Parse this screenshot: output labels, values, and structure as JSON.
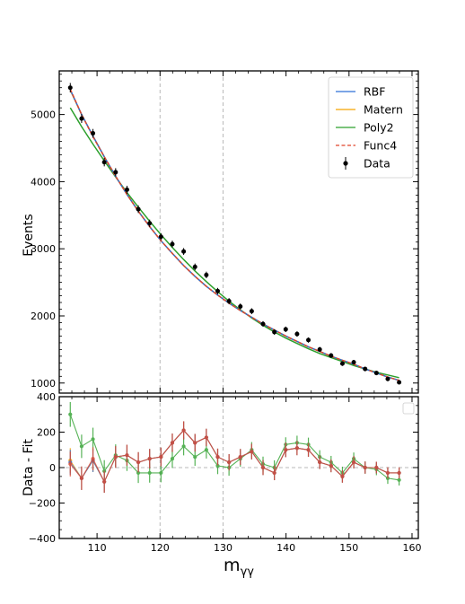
{
  "chart_data": [
    {
      "type": "line",
      "panel": "main",
      "xlabel": "",
      "ylabel": "Events",
      "xlim": [
        104,
        161
      ],
      "ylim": [
        850,
        5650
      ],
      "yticks": [
        1000,
        2000,
        3000,
        4000,
        5000
      ],
      "ytick_labels": [
        "1000",
        "2000",
        "3000",
        "4000",
        "5000"
      ],
      "xticks": [
        110,
        120,
        130,
        140,
        150,
        160
      ],
      "vlines": [
        120,
        130
      ],
      "legend": {
        "placement": "top-right",
        "entries": [
          "RBF",
          "Matern",
          "Poly2",
          "Func4",
          "Data"
        ]
      },
      "x": [
        105.75,
        107.55,
        109.35,
        111.15,
        112.95,
        114.75,
        116.55,
        118.35,
        120.15,
        121.95,
        123.75,
        125.55,
        127.35,
        129.15,
        130.95,
        132.75,
        134.55,
        136.35,
        138.15,
        139.95,
        141.75,
        143.55,
        145.35,
        147.15,
        148.95,
        150.75,
        152.55,
        154.35,
        156.15,
        157.95
      ],
      "series": [
        {
          "name": "Data",
          "style": "points",
          "color": "#000000",
          "values": [
            5400,
            4940,
            4720,
            4290,
            4140,
            3880,
            3590,
            3380,
            3180,
            3070,
            2960,
            2730,
            2610,
            2370,
            2220,
            2140,
            2070,
            1880,
            1760,
            1800,
            1730,
            1640,
            1500,
            1410,
            1290,
            1310,
            1210,
            1150,
            1060,
            1010
          ],
          "errors": [
            70,
            66,
            65,
            62,
            61,
            59,
            57,
            55,
            53,
            52,
            51,
            50,
            49,
            47,
            46,
            45,
            44,
            42,
            41,
            41,
            40,
            39,
            38,
            36,
            35,
            35,
            34,
            33,
            32,
            31
          ]
        },
        {
          "name": "RBF",
          "style": "line",
          "color": "#2f6fd6",
          "values": [
            5370,
            5000,
            4680,
            4370,
            4080,
            3810,
            3560,
            3330,
            3120,
            2930,
            2750,
            2590,
            2440,
            2310,
            2190,
            2080,
            1980,
            1880,
            1790,
            1700,
            1620,
            1540,
            1470,
            1400,
            1340,
            1280,
            1210,
            1150,
            1090,
            1040
          ]
        },
        {
          "name": "Matern",
          "style": "line",
          "color": "#f5a300",
          "values": [
            5360,
            5000,
            4680,
            4370,
            4080,
            3810,
            3560,
            3330,
            3120,
            2930,
            2750,
            2590,
            2440,
            2310,
            2190,
            2080,
            1980,
            1880,
            1790,
            1700,
            1620,
            1540,
            1470,
            1400,
            1340,
            1280,
            1210,
            1150,
            1090,
            1040
          ]
        },
        {
          "name": "Poly2",
          "style": "line",
          "color": "#2ca02c",
          "values": [
            5100,
            4820,
            4560,
            4310,
            4070,
            3840,
            3620,
            3410,
            3210,
            3020,
            2840,
            2670,
            2510,
            2360,
            2220,
            2090,
            1970,
            1860,
            1760,
            1670,
            1590,
            1510,
            1440,
            1380,
            1320,
            1260,
            1210,
            1160,
            1120,
            1080
          ]
        },
        {
          "name": "Func4",
          "style": "dashed",
          "color": "#e0452b",
          "values": [
            5380,
            5000,
            4670,
            4370,
            4080,
            3810,
            3560,
            3330,
            3120,
            2930,
            2750,
            2590,
            2440,
            2310,
            2190,
            2080,
            1980,
            1880,
            1790,
            1700,
            1620,
            1540,
            1470,
            1400,
            1340,
            1280,
            1210,
            1150,
            1090,
            1040
          ]
        }
      ]
    },
    {
      "type": "line",
      "panel": "residual",
      "xlabel": "m_γγ",
      "ylabel": "Data - Fit",
      "xlim": [
        104,
        161
      ],
      "ylim": [
        -400,
        400
      ],
      "yticks": [
        -400,
        -200,
        0,
        200,
        400
      ],
      "ytick_labels": [
        "−400",
        "−200",
        "0",
        "200",
        "400"
      ],
      "xticks": [
        110,
        120,
        130,
        140,
        150,
        160
      ],
      "xtick_labels": [
        "110",
        "120",
        "130",
        "140",
        "150",
        "160"
      ],
      "vlines": [
        120,
        130
      ],
      "zero_line": true,
      "x": [
        105.75,
        107.55,
        109.35,
        111.15,
        112.95,
        114.75,
        116.55,
        118.35,
        120.15,
        121.95,
        123.75,
        125.55,
        127.35,
        129.15,
        130.95,
        132.75,
        134.55,
        136.35,
        138.15,
        139.95,
        141.75,
        143.55,
        145.35,
        147.15,
        148.95,
        150.75,
        152.55,
        154.35,
        156.15,
        157.95
      ],
      "series": [
        {
          "name": "RBF",
          "color": "#2f6fd6",
          "values": [
            30,
            -60,
            40,
            -80,
            60,
            70,
            30,
            50,
            60,
            140,
            210,
            140,
            170,
            60,
            30,
            60,
            90,
            0,
            -30,
            100,
            110,
            100,
            30,
            10,
            -50,
            30,
            0,
            0,
            -30,
            -30
          ],
          "errors": [
            70,
            66,
            65,
            62,
            61,
            59,
            57,
            55,
            53,
            52,
            51,
            50,
            49,
            47,
            46,
            45,
            44,
            42,
            41,
            41,
            40,
            39,
            38,
            36,
            35,
            35,
            34,
            33,
            32,
            31
          ]
        },
        {
          "name": "Matern",
          "color": "#f5a300",
          "values": [
            40,
            -60,
            40,
            -80,
            60,
            70,
            30,
            50,
            60,
            140,
            210,
            140,
            170,
            60,
            30,
            60,
            90,
            0,
            -30,
            100,
            110,
            100,
            30,
            10,
            -50,
            30,
            0,
            0,
            -30,
            -30
          ],
          "errors": [
            70,
            66,
            65,
            62,
            61,
            59,
            57,
            55,
            53,
            52,
            51,
            50,
            49,
            47,
            46,
            45,
            44,
            42,
            41,
            41,
            40,
            39,
            38,
            36,
            35,
            35,
            34,
            33,
            32,
            31
          ]
        },
        {
          "name": "Poly2",
          "color": "#2ca02c",
          "values": [
            300,
            120,
            160,
            -20,
            70,
            40,
            -30,
            -30,
            -30,
            50,
            120,
            60,
            100,
            10,
            0,
            50,
            100,
            20,
            0,
            130,
            140,
            130,
            60,
            30,
            -30,
            50,
            0,
            -10,
            -60,
            -70
          ],
          "errors": [
            70,
            66,
            65,
            62,
            61,
            59,
            57,
            55,
            53,
            52,
            51,
            50,
            49,
            47,
            46,
            45,
            44,
            42,
            41,
            41,
            40,
            39,
            38,
            36,
            35,
            35,
            34,
            33,
            32,
            31
          ]
        },
        {
          "name": "Func4",
          "color": "#e0452b",
          "values": [
            20,
            -60,
            50,
            -80,
            60,
            70,
            30,
            50,
            60,
            140,
            210,
            140,
            170,
            60,
            30,
            60,
            90,
            0,
            -30,
            100,
            110,
            100,
            30,
            10,
            -50,
            30,
            0,
            0,
            -30,
            -30
          ],
          "errors": [
            70,
            66,
            65,
            62,
            61,
            59,
            57,
            55,
            53,
            52,
            51,
            50,
            49,
            47,
            46,
            45,
            44,
            42,
            41,
            41,
            40,
            39,
            38,
            36,
            35,
            35,
            34,
            33,
            32,
            31
          ]
        }
      ]
    }
  ]
}
